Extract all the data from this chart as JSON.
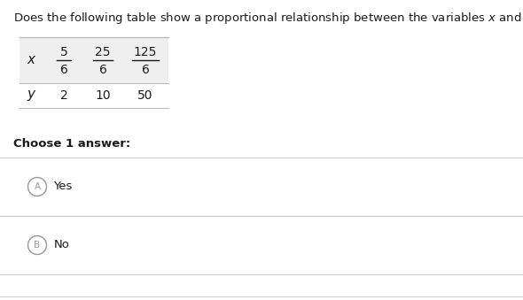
{
  "question_plain": "Does the following table show a proportional relationship between the variables ",
  "question_end": "?",
  "x_numerators": [
    "5",
    "25",
    "125"
  ],
  "x_denominators": [
    "6",
    "6",
    "6"
  ],
  "y_values": [
    "2",
    "10",
    "50"
  ],
  "choose_label": "Choose 1 answer:",
  "option_A": "Yes",
  "option_B": "No",
  "bg_color": "#ffffff",
  "table_bg": "#efefef",
  "text_color": "#1a1a1a",
  "divider_color": "#cccccc",
  "circle_color": "#999999",
  "table_line_color": "#bbbbbb"
}
